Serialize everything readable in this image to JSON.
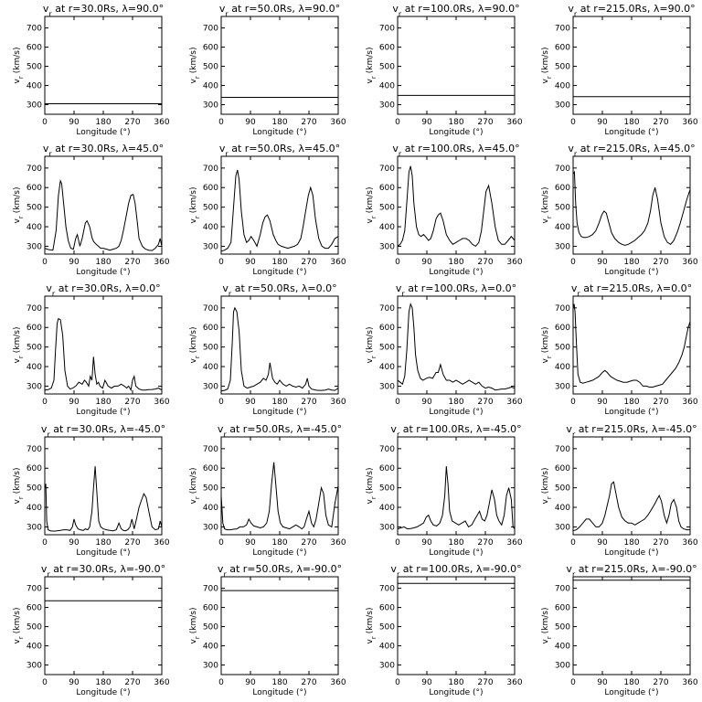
{
  "axes": {
    "xlabel": "Longitude (°)",
    "ylabel": "v",
    "ylabel_sub": "r",
    "ylabel_unit": "(km/s)",
    "xticks": [
      "0",
      "90",
      "180",
      "270",
      "360"
    ],
    "yticks": [
      "300",
      "400",
      "500",
      "600",
      "700"
    ]
  },
  "chart_data": [
    {
      "type": "line",
      "title": "v, at r=30.0Rs, λ=90.0°",
      "xlabel": "Longitude (°)",
      "ylabel": "v, (km/s)",
      "xlim": [
        0,
        360
      ],
      "ylim": [
        250,
        760
      ],
      "x": [
        0,
        360
      ],
      "y": [
        305,
        305
      ]
    },
    {
      "type": "line",
      "title": "v, at r=50.0Rs, λ=90.0°",
      "xlabel": "Longitude (°)",
      "ylabel": "v, (km/s)",
      "xlim": [
        0,
        360
      ],
      "ylim": [
        250,
        760
      ],
      "x": [
        0,
        360
      ],
      "y": [
        338,
        338
      ]
    },
    {
      "type": "line",
      "title": "v, at r=100.0Rs, λ=90.0°",
      "xlabel": "Longitude (°)",
      "ylabel": "v, (km/s)",
      "xlim": [
        0,
        360
      ],
      "ylim": [
        250,
        760
      ],
      "x": [
        0,
        360
      ],
      "y": [
        348,
        348
      ]
    },
    {
      "type": "line",
      "title": "v, at r=215.0Rs, λ=90.0°",
      "xlabel": "Longitude (°)",
      "ylabel": "v, (km/s)",
      "xlim": [
        0,
        360
      ],
      "ylim": [
        250,
        760
      ],
      "x": [
        0,
        360
      ],
      "y": [
        342,
        342
      ]
    },
    {
      "type": "line",
      "title": "v, at r=30.0Rs, λ=45.0°",
      "xlabel": "Longitude (°)",
      "ylabel": "v, (km/s)",
      "xlim": [
        0,
        360
      ],
      "ylim": [
        260,
        760
      ],
      "x": [
        0,
        8,
        15,
        25,
        35,
        42,
        48,
        52,
        58,
        65,
        72,
        80,
        88,
        95,
        100,
        108,
        115,
        125,
        130,
        138,
        145,
        150,
        158,
        165,
        172,
        180,
        190,
        200,
        210,
        220,
        228,
        235,
        242,
        250,
        258,
        265,
        272,
        278,
        285,
        290,
        300,
        310,
        320,
        330,
        340,
        350,
        355,
        360
      ],
      "y": [
        290,
        285,
        282,
        280,
        380,
        560,
        635,
        620,
        520,
        400,
        330,
        290,
        285,
        340,
        360,
        300,
        340,
        420,
        430,
        400,
        345,
        325,
        310,
        300,
        290,
        290,
        285,
        280,
        285,
        290,
        300,
        330,
        380,
        450,
        520,
        560,
        565,
        520,
        420,
        340,
        300,
        285,
        280,
        278,
        290,
        310,
        340,
        300
      ]
    },
    {
      "type": "line",
      "title": "v, at r=50.0Rs, λ=45.0°",
      "xlabel": "Longitude (°)",
      "ylabel": "v, (km/s)",
      "xlim": [
        0,
        360
      ],
      "ylim": [
        260,
        760
      ],
      "x": [
        0,
        10,
        20,
        30,
        38,
        45,
        50,
        55,
        62,
        70,
        78,
        85,
        92,
        100,
        110,
        120,
        128,
        135,
        142,
        150,
        160,
        168,
        175,
        185,
        195,
        205,
        215,
        225,
        235,
        245,
        252,
        260,
        268,
        275,
        282,
        290,
        300,
        310,
        320,
        330,
        340,
        350,
        360
      ],
      "y": [
        275,
        280,
        290,
        320,
        500,
        660,
        690,
        640,
        480,
        360,
        320,
        330,
        350,
        330,
        300,
        360,
        420,
        450,
        460,
        430,
        360,
        330,
        310,
        300,
        295,
        290,
        295,
        300,
        310,
        340,
        400,
        480,
        560,
        600,
        560,
        440,
        340,
        300,
        290,
        290,
        310,
        340,
        350
      ]
    },
    {
      "type": "line",
      "title": "v, at r=100.0Rs, λ=45.0°",
      "xlabel": "Longitude (°)",
      "ylabel": "v, (km/s)",
      "xlim": [
        0,
        360
      ],
      "ylim": [
        260,
        760
      ],
      "x": [
        0,
        8,
        15,
        22,
        28,
        35,
        40,
        45,
        50,
        58,
        65,
        72,
        80,
        88,
        95,
        102,
        110,
        118,
        125,
        132,
        140,
        150,
        160,
        170,
        180,
        190,
        200,
        210,
        220,
        230,
        240,
        250,
        258,
        265,
        272,
        280,
        290,
        300,
        310,
        320,
        330,
        340,
        350,
        360
      ],
      "y": [
        300,
        310,
        330,
        380,
        520,
        680,
        710,
        660,
        520,
        400,
        360,
        350,
        360,
        345,
        330,
        340,
        380,
        440,
        460,
        470,
        430,
        360,
        330,
        310,
        320,
        330,
        340,
        340,
        330,
        310,
        300,
        320,
        380,
        480,
        580,
        610,
        520,
        400,
        330,
        310,
        310,
        330,
        350,
        330
      ]
    },
    {
      "type": "line",
      "title": "v, at r=215.0Rs, λ=45.0°",
      "xlabel": "Longitude (°)",
      "ylabel": "v, (km/s)",
      "xlim": [
        0,
        360
      ],
      "ylim": [
        260,
        760
      ],
      "x": [
        0,
        4,
        8,
        12,
        18,
        25,
        32,
        40,
        50,
        60,
        70,
        80,
        88,
        95,
        102,
        110,
        118,
        128,
        140,
        150,
        160,
        170,
        180,
        190,
        200,
        210,
        220,
        230,
        238,
        245,
        252,
        260,
        270,
        280,
        290,
        300,
        310,
        320,
        330,
        340,
        350,
        360
      ],
      "y": [
        670,
        680,
        520,
        420,
        370,
        350,
        345,
        345,
        350,
        360,
        380,
        420,
        460,
        480,
        470,
        420,
        370,
        340,
        320,
        310,
        305,
        310,
        320,
        330,
        345,
        360,
        380,
        420,
        480,
        560,
        600,
        540,
        420,
        350,
        320,
        310,
        330,
        370,
        420,
        480,
        540,
        590
      ]
    },
    {
      "type": "line",
      "title": "v, at r=30.0Rs, λ=0.0°",
      "xlabel": "Longitude (°)",
      "ylabel": "v, (km/s)",
      "xlim": [
        0,
        360
      ],
      "ylim": [
        260,
        760
      ],
      "x": [
        0,
        10,
        20,
        28,
        33,
        38,
        42,
        48,
        55,
        62,
        70,
        78,
        86,
        95,
        105,
        115,
        122,
        128,
        135,
        140,
        145,
        150,
        155,
        160,
        165,
        170,
        178,
        185,
        195,
        205,
        215,
        225,
        235,
        245,
        252,
        258,
        265,
        270,
        275,
        280,
        290,
        300,
        310,
        320,
        330,
        340,
        350,
        360
      ],
      "y": [
        280,
        282,
        290,
        330,
        480,
        620,
        645,
        640,
        560,
        380,
        300,
        285,
        290,
        300,
        320,
        310,
        330,
        320,
        300,
        350,
        330,
        450,
        360,
        310,
        320,
        300,
        290,
        330,
        300,
        290,
        300,
        300,
        310,
        300,
        290,
        300,
        280,
        330,
        350,
        300,
        285,
        280,
        280,
        282,
        283,
        285,
        290,
        280
      ]
    },
    {
      "type": "line",
      "title": "v, at r=50.0Rs, λ=0.0°",
      "xlabel": "Longitude (°)",
      "ylabel": "v, (km/s)",
      "xlim": [
        0,
        360
      ],
      "ylim": [
        260,
        760
      ],
      "x": [
        0,
        10,
        20,
        28,
        34,
        38,
        42,
        48,
        55,
        62,
        70,
        80,
        90,
        100,
        110,
        120,
        130,
        138,
        145,
        150,
        158,
        165,
        172,
        180,
        190,
        200,
        210,
        220,
        230,
        240,
        250,
        260,
        265,
        270,
        278,
        290,
        300,
        310,
        320,
        330,
        340,
        350,
        360
      ],
      "y": [
        275,
        278,
        285,
        330,
        520,
        680,
        700,
        680,
        580,
        380,
        300,
        290,
        295,
        300,
        310,
        320,
        340,
        330,
        360,
        420,
        340,
        320,
        310,
        330,
        310,
        300,
        310,
        300,
        295,
        300,
        290,
        310,
        340,
        300,
        285,
        280,
        278,
        278,
        280,
        285,
        280,
        278,
        290
      ]
    },
    {
      "type": "line",
      "title": "v, at r=100.0Rs, λ=0.0°",
      "xlabel": "Longitude (°)",
      "ylabel": "v, (km/s)",
      "xlim": [
        0,
        360
      ],
      "ylim": [
        260,
        760
      ],
      "x": [
        0,
        8,
        15,
        22,
        28,
        35,
        40,
        45,
        50,
        55,
        62,
        70,
        78,
        88,
        98,
        108,
        118,
        125,
        132,
        140,
        150,
        160,
        170,
        180,
        190,
        200,
        210,
        220,
        230,
        240,
        250,
        260,
        270,
        280,
        290,
        300,
        310,
        320,
        330,
        340,
        350,
        360
      ],
      "y": [
        330,
        320,
        310,
        350,
        480,
        680,
        720,
        700,
        600,
        460,
        380,
        340,
        330,
        340,
        345,
        340,
        370,
        370,
        410,
        360,
        330,
        330,
        320,
        330,
        320,
        310,
        320,
        330,
        320,
        310,
        320,
        300,
        290,
        295,
        290,
        280,
        282,
        285,
        285,
        290,
        295,
        290
      ]
    },
    {
      "type": "line",
      "title": "v, at r=215.0Rs, λ=0.0°",
      "xlabel": "Longitude (°)",
      "ylabel": "v, (km/s)",
      "xlim": [
        0,
        360
      ],
      "ylim": [
        260,
        760
      ],
      "x": [
        0,
        3,
        6,
        10,
        15,
        22,
        30,
        40,
        50,
        60,
        70,
        80,
        90,
        98,
        105,
        115,
        125,
        135,
        145,
        155,
        165,
        175,
        185,
        195,
        205,
        215,
        225,
        235,
        245,
        255,
        265,
        275,
        285,
        295,
        305,
        315,
        325,
        335,
        342,
        348,
        354,
        360
      ],
      "y": [
        700,
        720,
        680,
        520,
        360,
        320,
        315,
        320,
        325,
        330,
        340,
        350,
        370,
        380,
        370,
        350,
        340,
        330,
        325,
        320,
        320,
        325,
        330,
        330,
        320,
        300,
        300,
        295,
        295,
        300,
        305,
        310,
        330,
        350,
        370,
        390,
        420,
        460,
        500,
        550,
        600,
        630
      ]
    },
    {
      "type": "line",
      "title": "v, at r=30.0Rs, λ=-45.0°",
      "xlabel": "Longitude (°)",
      "ylabel": "v, (km/s)",
      "xlim": [
        0,
        360
      ],
      "ylim": [
        260,
        760
      ],
      "x": [
        0,
        3,
        6,
        10,
        18,
        28,
        38,
        48,
        58,
        68,
        78,
        85,
        90,
        95,
        102,
        110,
        118,
        125,
        132,
        138,
        145,
        150,
        155,
        160,
        166,
        172,
        180,
        190,
        200,
        210,
        220,
        228,
        235,
        242,
        248,
        255,
        262,
        268,
        275,
        282,
        290,
        298,
        305,
        312,
        320,
        330,
        340,
        350,
        355,
        360
      ],
      "y": [
        500,
        520,
        330,
        285,
        280,
        278,
        280,
        282,
        285,
        285,
        282,
        300,
        340,
        310,
        290,
        285,
        282,
        290,
        285,
        300,
        380,
        500,
        610,
        480,
        330,
        300,
        290,
        285,
        282,
        280,
        285,
        320,
        290,
        282,
        280,
        285,
        300,
        340,
        290,
        340,
        400,
        440,
        470,
        450,
        380,
        300,
        285,
        290,
        330,
        300
      ]
    },
    {
      "type": "line",
      "title": "v, at r=50.0Rs, λ=-45.0°",
      "xlabel": "Longitude (°)",
      "ylabel": "v, (km/s)",
      "xlim": [
        0,
        360
      ],
      "ylim": [
        260,
        760
      ],
      "x": [
        0,
        5,
        10,
        18,
        28,
        38,
        48,
        58,
        68,
        78,
        85,
        92,
        100,
        110,
        120,
        130,
        140,
        148,
        155,
        162,
        168,
        175,
        182,
        190,
        200,
        210,
        220,
        230,
        240,
        248,
        255,
        262,
        270,
        278,
        285,
        292,
        300,
        308,
        315,
        322,
        330,
        340,
        350,
        360
      ],
      "y": [
        460,
        320,
        290,
        285,
        285,
        288,
        290,
        300,
        300,
        310,
        340,
        320,
        305,
        300,
        295,
        300,
        320,
        380,
        520,
        630,
        520,
        380,
        320,
        300,
        295,
        290,
        300,
        310,
        300,
        290,
        300,
        340,
        380,
        320,
        300,
        340,
        420,
        500,
        470,
        360,
        310,
        300,
        420,
        510
      ]
    },
    {
      "type": "line",
      "title": "v, at r=100.0Rs, λ=-45.0°",
      "xlabel": "Longitude (°)",
      "ylabel": "v, (km/s)",
      "xlim": [
        0,
        360
      ],
      "ylim": [
        260,
        760
      ],
      "x": [
        0,
        10,
        20,
        30,
        40,
        50,
        60,
        70,
        80,
        88,
        95,
        102,
        110,
        120,
        130,
        138,
        145,
        150,
        155,
        160,
        168,
        178,
        188,
        198,
        208,
        218,
        228,
        238,
        245,
        252,
        260,
        268,
        275,
        282,
        290,
        298,
        305,
        312,
        320,
        328,
        335,
        342,
        350,
        355,
        360
      ],
      "y": [
        290,
        295,
        300,
        290,
        292,
        295,
        300,
        310,
        320,
        350,
        360,
        330,
        310,
        305,
        320,
        360,
        460,
        610,
        520,
        380,
        330,
        320,
        310,
        320,
        330,
        300,
        310,
        340,
        360,
        380,
        340,
        330,
        360,
        420,
        490,
        440,
        360,
        330,
        310,
        360,
        460,
        500,
        440,
        300,
        290
      ]
    },
    {
      "type": "line",
      "title": "v, at r=215.0Rs, λ=-45.0°",
      "xlabel": "Longitude (°)",
      "ylabel": "v, (km/s)",
      "xlim": [
        0,
        360
      ],
      "ylim": [
        260,
        760
      ],
      "x": [
        0,
        10,
        20,
        30,
        40,
        50,
        60,
        70,
        80,
        90,
        98,
        105,
        112,
        118,
        125,
        132,
        140,
        150,
        160,
        170,
        180,
        190,
        200,
        210,
        220,
        230,
        238,
        245,
        252,
        258,
        265,
        272,
        280,
        288,
        295,
        302,
        310,
        318,
        325,
        332,
        340,
        350,
        360
      ],
      "y": [
        280,
        285,
        300,
        320,
        340,
        340,
        320,
        300,
        300,
        320,
        360,
        410,
        460,
        520,
        530,
        470,
        400,
        350,
        330,
        320,
        320,
        310,
        320,
        330,
        340,
        360,
        380,
        400,
        420,
        440,
        460,
        430,
        360,
        320,
        360,
        420,
        440,
        400,
        330,
        300,
        290,
        285,
        285
      ]
    },
    {
      "type": "line",
      "title": "v, at r=30.0Rs, λ=-90.0°",
      "xlabel": "Longitude (°)",
      "ylabel": "v, (km/s)",
      "xlim": [
        0,
        360
      ],
      "ylim": [
        250,
        760
      ],
      "x": [
        0,
        360
      ],
      "y": [
        635,
        635
      ]
    },
    {
      "type": "line",
      "title": "v, at r=50.0Rs, λ=-90.0°",
      "xlabel": "Longitude (°)",
      "ylabel": "v, (km/s)",
      "xlim": [
        0,
        360
      ],
      "ylim": [
        250,
        760
      ],
      "x": [
        0,
        360
      ],
      "y": [
        688,
        688
      ]
    },
    {
      "type": "line",
      "title": "v, at r=100.0Rs, λ=-90.0°",
      "xlabel": "Longitude (°)",
      "ylabel": "v, (km/s)",
      "xlim": [
        0,
        360
      ],
      "ylim": [
        250,
        760
      ],
      "x": [
        0,
        360
      ],
      "y": [
        725,
        725
      ]
    },
    {
      "type": "line",
      "title": "v, at r=215.0Rs, λ=-90.0°",
      "xlabel": "Longitude (°)",
      "ylabel": "v, (km/s)",
      "xlim": [
        0,
        360
      ],
      "ylim": [
        250,
        760
      ],
      "x": [
        0,
        360
      ],
      "y": [
        742,
        742
      ]
    }
  ]
}
